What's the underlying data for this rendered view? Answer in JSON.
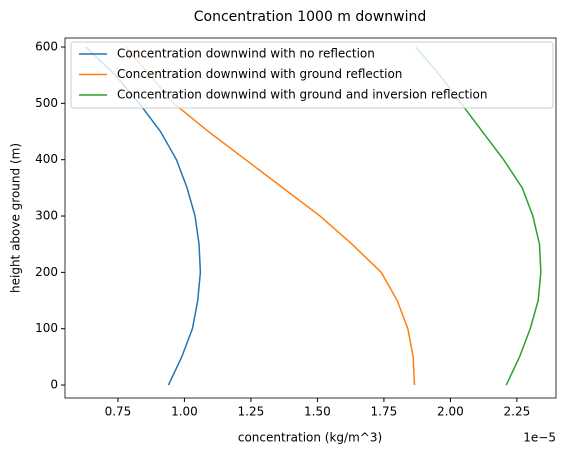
{
  "chart_data": {
    "type": "line",
    "title": "Concentration 1000 m downwind",
    "x_label": "concentration (kg/m^3)",
    "y_label": "height above ground (m)",
    "x_offset_label": "1e−5",
    "xlim": [
      0.551,
      2.397
    ],
    "ylim": [
      -23,
      616
    ],
    "xticks": [
      0.75,
      {
        "value": 1,
        "label": "1.00"
      },
      1.25,
      {
        "value": 1.5,
        "label": "1.50"
      },
      1.75,
      {
        "value": 2,
        "label": "2.00"
      },
      2.25
    ],
    "yticks": [
      0,
      100,
      200,
      300,
      400,
      500,
      600
    ],
    "legend": "upper left",
    "series": [
      {
        "name": "Concentration downwind with no reflection",
        "color": "#1f77b4",
        "x": [
          0.94,
          0.99,
          1.03,
          1.05,
          1.06,
          1.055,
          1.04,
          1.01,
          0.97,
          0.91,
          0.83,
          0.74,
          0.63
        ],
        "values": [
          0,
          50,
          100,
          150,
          200,
          250,
          300,
          350,
          400,
          450,
          500,
          550,
          600
        ]
      },
      {
        "name": "Concentration downwind with ground reflection",
        "color": "#ff7f0e",
        "x": [
          1.865,
          1.86,
          1.84,
          1.8,
          1.74,
          1.63,
          1.51,
          1.37,
          1.23,
          1.09,
          0.96,
          0.87,
          0.78
        ],
        "values": [
          0,
          50,
          100,
          150,
          200,
          250,
          300,
          350,
          400,
          450,
          500,
          550,
          600
        ]
      },
      {
        "name": "Concentration downwind with ground and inversion reflection",
        "color": "#2ca02c",
        "x": [
          2.21,
          2.26,
          2.3,
          2.33,
          2.34,
          2.335,
          2.31,
          2.27,
          2.2,
          2.12,
          2.04,
          1.96,
          1.87
        ],
        "values": [
          0,
          50,
          100,
          150,
          200,
          250,
          300,
          350,
          400,
          450,
          500,
          550,
          600
        ]
      }
    ]
  }
}
